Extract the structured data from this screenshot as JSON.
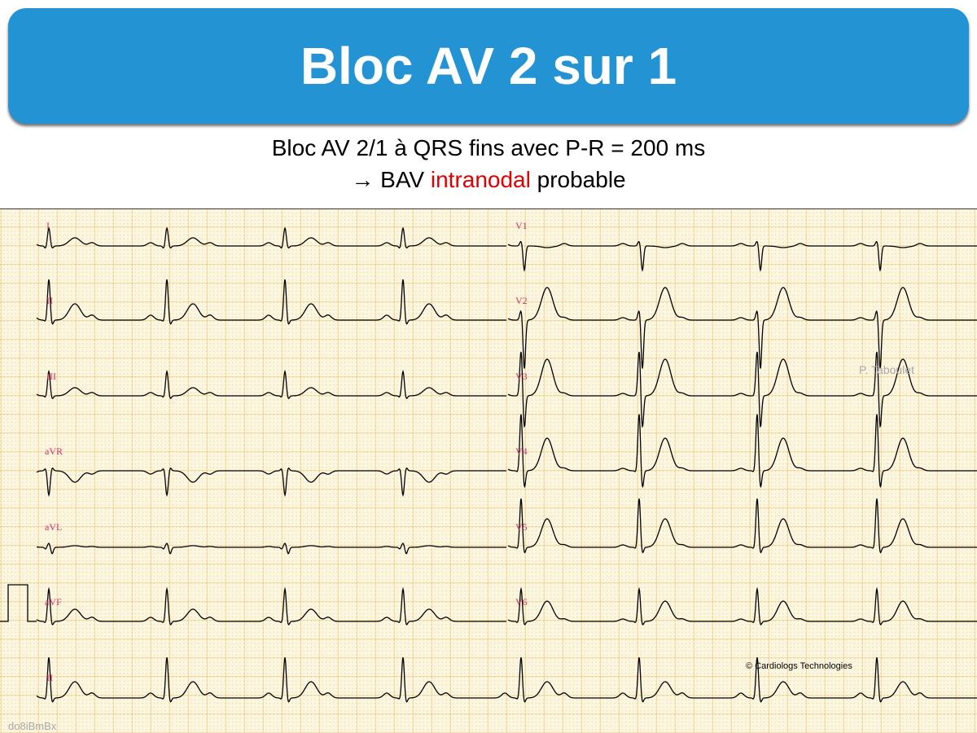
{
  "slide": {
    "title": "Bloc AV 2 sur 1",
    "subtitle_line1": "Bloc AV 2/1 à QRS fins avec P-R = 200 ms",
    "subtitle_line2_arrow": "→",
    "subtitle_line2_pre": "BAV",
    "subtitle_line2_highlight": "intranodal",
    "subtitle_line2_post": "probable",
    "header_color": "#2393d3",
    "highlight_color": "#e00000"
  },
  "ecg": {
    "leads_left": [
      "I",
      "II",
      "III",
      "aVR",
      "aVL",
      "aVF",
      "II"
    ],
    "leads_right": [
      "V1",
      "V2",
      "V3",
      "V4",
      "V5",
      "V6"
    ],
    "author_watermark": "P. Taboulet",
    "copyright": "© Cardiologs Technologies",
    "record_id": "do8iBmBx",
    "grid_color": "#f0c060",
    "paper_color": "#fdf6df",
    "trace_color": "#000000"
  }
}
